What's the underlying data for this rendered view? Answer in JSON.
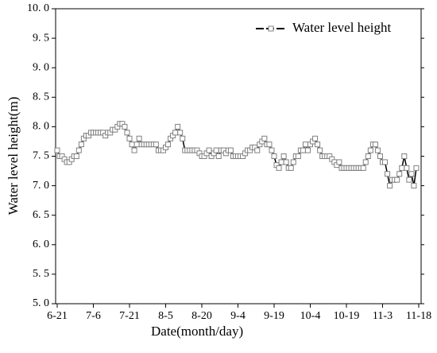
{
  "chart_data": {
    "type": "line",
    "x_label": "Date(month/day)",
    "y_label": "Water level height(m)",
    "categories": [
      "6-21",
      null,
      null,
      null,
      null,
      null,
      null,
      null,
      null,
      null,
      null,
      null,
      null,
      null,
      null,
      "7-6",
      null,
      null,
      null,
      null,
      null,
      null,
      null,
      null,
      null,
      null,
      null,
      null,
      null,
      null,
      "7-21",
      null,
      null,
      null,
      null,
      null,
      null,
      null,
      null,
      null,
      null,
      null,
      null,
      null,
      null,
      "8-5",
      null,
      null,
      null,
      null,
      null,
      null,
      null,
      null,
      null,
      null,
      null,
      null,
      null,
      null,
      "8-20",
      null,
      null,
      null,
      null,
      null,
      null,
      null,
      null,
      null,
      null,
      null,
      null,
      null,
      null,
      "9-4",
      null,
      null,
      null,
      null,
      null,
      null,
      null,
      null,
      null,
      null,
      null,
      null,
      null,
      null,
      "9-19",
      null,
      null,
      null,
      null,
      null,
      null,
      null,
      null,
      null,
      null,
      null,
      null,
      null,
      null,
      "10-4",
      null,
      null,
      null,
      null,
      null,
      null,
      null,
      null,
      null,
      null,
      null,
      null,
      null,
      null,
      "10-19",
      null,
      null,
      null,
      null,
      null,
      null,
      null,
      null,
      null,
      null,
      null,
      null,
      null,
      null,
      "11-3",
      null,
      null,
      null,
      null,
      null,
      null,
      null,
      null,
      null,
      null,
      null,
      null,
      null,
      null,
      "11-18"
    ],
    "series": [
      {
        "name": "Water level height",
        "color": "#000000",
        "marker_color": "#808080",
        "values": [
          7.6,
          7.5,
          7.5,
          7.45,
          7.4,
          7.4,
          7.45,
          7.5,
          7.5,
          7.6,
          7.7,
          7.8,
          7.85,
          7.85,
          7.9,
          7.9,
          7.9,
          7.9,
          7.9,
          7.9,
          7.85,
          7.9,
          7.9,
          7.95,
          7.95,
          8.0,
          8.05,
          8.05,
          8.0,
          7.9,
          7.8,
          7.7,
          7.6,
          7.7,
          7.8,
          7.7,
          7.7,
          7.7,
          7.7,
          7.7,
          7.7,
          7.7,
          7.6,
          7.6,
          7.6,
          7.65,
          7.7,
          7.8,
          7.85,
          7.9,
          8.0,
          7.9,
          7.8,
          7.6,
          7.6,
          7.6,
          7.6,
          7.6,
          7.6,
          7.55,
          7.5,
          7.5,
          7.55,
          7.6,
          7.5,
          7.55,
          7.6,
          7.5,
          7.6,
          7.6,
          7.55,
          7.6,
          7.6,
          7.5,
          7.5,
          7.5,
          7.5,
          7.5,
          7.55,
          7.6,
          7.6,
          7.65,
          7.65,
          7.6,
          7.7,
          7.75,
          7.8,
          7.7,
          7.7,
          7.6,
          7.5,
          7.35,
          7.3,
          7.4,
          7.5,
          7.4,
          7.3,
          7.3,
          7.4,
          7.5,
          7.5,
          7.6,
          7.6,
          7.7,
          7.6,
          7.7,
          7.75,
          7.8,
          7.7,
          7.6,
          7.5,
          7.5,
          7.5,
          7.5,
          7.45,
          7.4,
          7.35,
          7.4,
          7.3,
          7.3,
          7.3,
          7.3,
          7.3,
          7.3,
          7.3,
          7.3,
          7.3,
          7.3,
          7.4,
          7.5,
          7.6,
          7.7,
          7.7,
          7.6,
          7.5,
          7.4,
          7.4,
          7.2,
          7.0,
          7.1,
          7.1,
          7.1,
          7.2,
          7.3,
          7.5,
          7.3,
          7.1,
          7.2,
          7.0,
          7.3,
          null
        ]
      }
    ],
    "ylim": [
      5,
      10
    ],
    "yticks": [
      {
        "value": 5,
        "label": "5. 0"
      },
      {
        "value": 5.5,
        "label": "5. 5"
      },
      {
        "value": 6,
        "label": "6. 0"
      },
      {
        "value": 6.5,
        "label": "6. 5"
      },
      {
        "value": 7,
        "label": "7. 0"
      },
      {
        "value": 7.5,
        "label": "7. 5"
      },
      {
        "value": 8,
        "label": "8. 0"
      },
      {
        "value": 8.5,
        "label": "8. 5"
      },
      {
        "value": 9,
        "label": "9. 0"
      },
      {
        "value": 9.5,
        "label": "9. 5"
      },
      {
        "value": 10,
        "label": "10. 0"
      }
    ],
    "legend": "upper right"
  }
}
